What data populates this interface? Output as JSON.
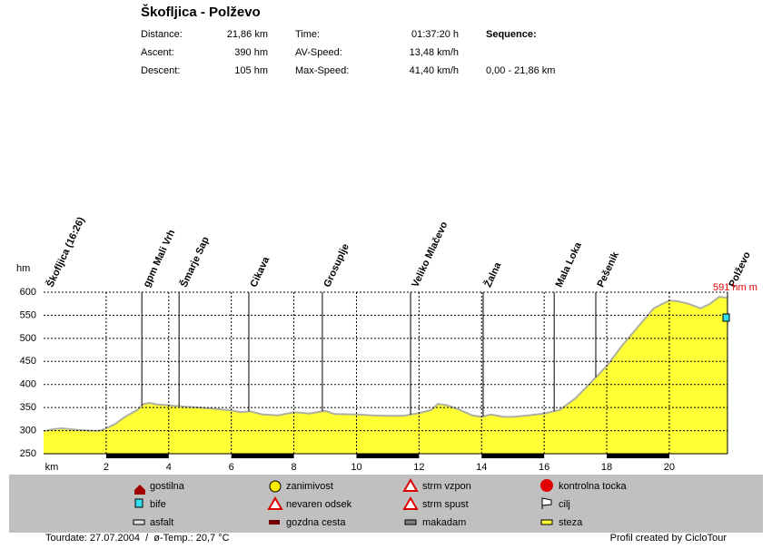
{
  "header": {
    "title": "Škofljica - Polževo",
    "stats": [
      {
        "label": "Distance:",
        "value": "21,86 km"
      },
      {
        "label": "Ascent:",
        "value": "390 hm"
      },
      {
        "label": "Descent:",
        "value": "105 hm"
      },
      {
        "label": "Time:",
        "value": "01:37:20 h"
      },
      {
        "label": "AV-Speed:",
        "value": "13,48 km/h"
      },
      {
        "label": "Max-Speed:",
        "value": "41,40 km/h"
      }
    ],
    "sequence_label": "Sequence:",
    "sequence": "0,00 - 21,86 km"
  },
  "chart_data": {
    "type": "area",
    "color": "#ffff33",
    "line_color": "#b0b0a0",
    "xlabel": "km",
    "ylabel": "hm",
    "end_label": "591 hm m",
    "xlim": [
      0,
      21.86
    ],
    "xticks": [
      2,
      4,
      6,
      8,
      10,
      12,
      14,
      16,
      18,
      20
    ],
    "ylim": [
      250,
      600
    ],
    "yticks": [
      250,
      300,
      350,
      400,
      450,
      500,
      550,
      600
    ],
    "grid": true,
    "x": [
      0,
      0.3,
      0.6,
      1,
      1.5,
      1.8,
      2,
      2.3,
      2.6,
      3,
      3.2,
      3.4,
      3.6,
      4,
      4.5,
      5,
      5.5,
      6,
      6.3,
      6.6,
      7,
      7.5,
      8,
      8.5,
      9,
      9.3,
      10,
      10.5,
      11,
      11.5,
      12,
      12.4,
      12.6,
      12.9,
      13.3,
      13.7,
      14,
      14.3,
      14.7,
      15,
      15.5,
      16,
      16.5,
      17,
      17.5,
      18,
      18.5,
      19,
      19.5,
      20,
      20.3,
      20.6,
      21,
      21.3,
      21.6,
      21.86
    ],
    "values": [
      299,
      303,
      305,
      302,
      300,
      300,
      305,
      315,
      330,
      345,
      358,
      360,
      357,
      355,
      352,
      350,
      347,
      344,
      340,
      342,
      335,
      333,
      340,
      337,
      343,
      336,
      335,
      333,
      332,
      332,
      338,
      345,
      358,
      355,
      345,
      333,
      330,
      335,
      330,
      330,
      333,
      337,
      345,
      370,
      405,
      440,
      485,
      525,
      565,
      582,
      580,
      575,
      565,
      575,
      590,
      588
    ],
    "places": [
      {
        "name": "Škofljica (16:26)",
        "km": 0
      },
      {
        "name": "gpm Mali Vrh",
        "km": 3.14
      },
      {
        "name": "Šmarje Sap",
        "km": 4.33
      },
      {
        "name": "Cikava",
        "km": 6.56
      },
      {
        "name": "Grosuplje",
        "km": 8.91
      },
      {
        "name": "Veliko Mlačevo",
        "km": 11.73
      },
      {
        "name": "Žalna",
        "km": 14.05
      },
      {
        "name": "Mala Loka",
        "km": 16.32
      },
      {
        "name": "Pešenik",
        "km": 17.65
      },
      {
        "name": "Polževo",
        "km": 21.86
      }
    ]
  },
  "legend": [
    "gostilna",
    "bife",
    "asfalt",
    "zanimivost",
    "nevaren odsek",
    "gozdna cesta",
    "strm vzpon",
    "strm spust",
    "makadam",
    "kontrolna tocka",
    "cilj",
    "steza"
  ],
  "footer": {
    "tour": "Tourdate: 27.07.2004  /  ø-Temp.: 20,7 °C",
    "credit": "Profil created by CicloTour"
  }
}
